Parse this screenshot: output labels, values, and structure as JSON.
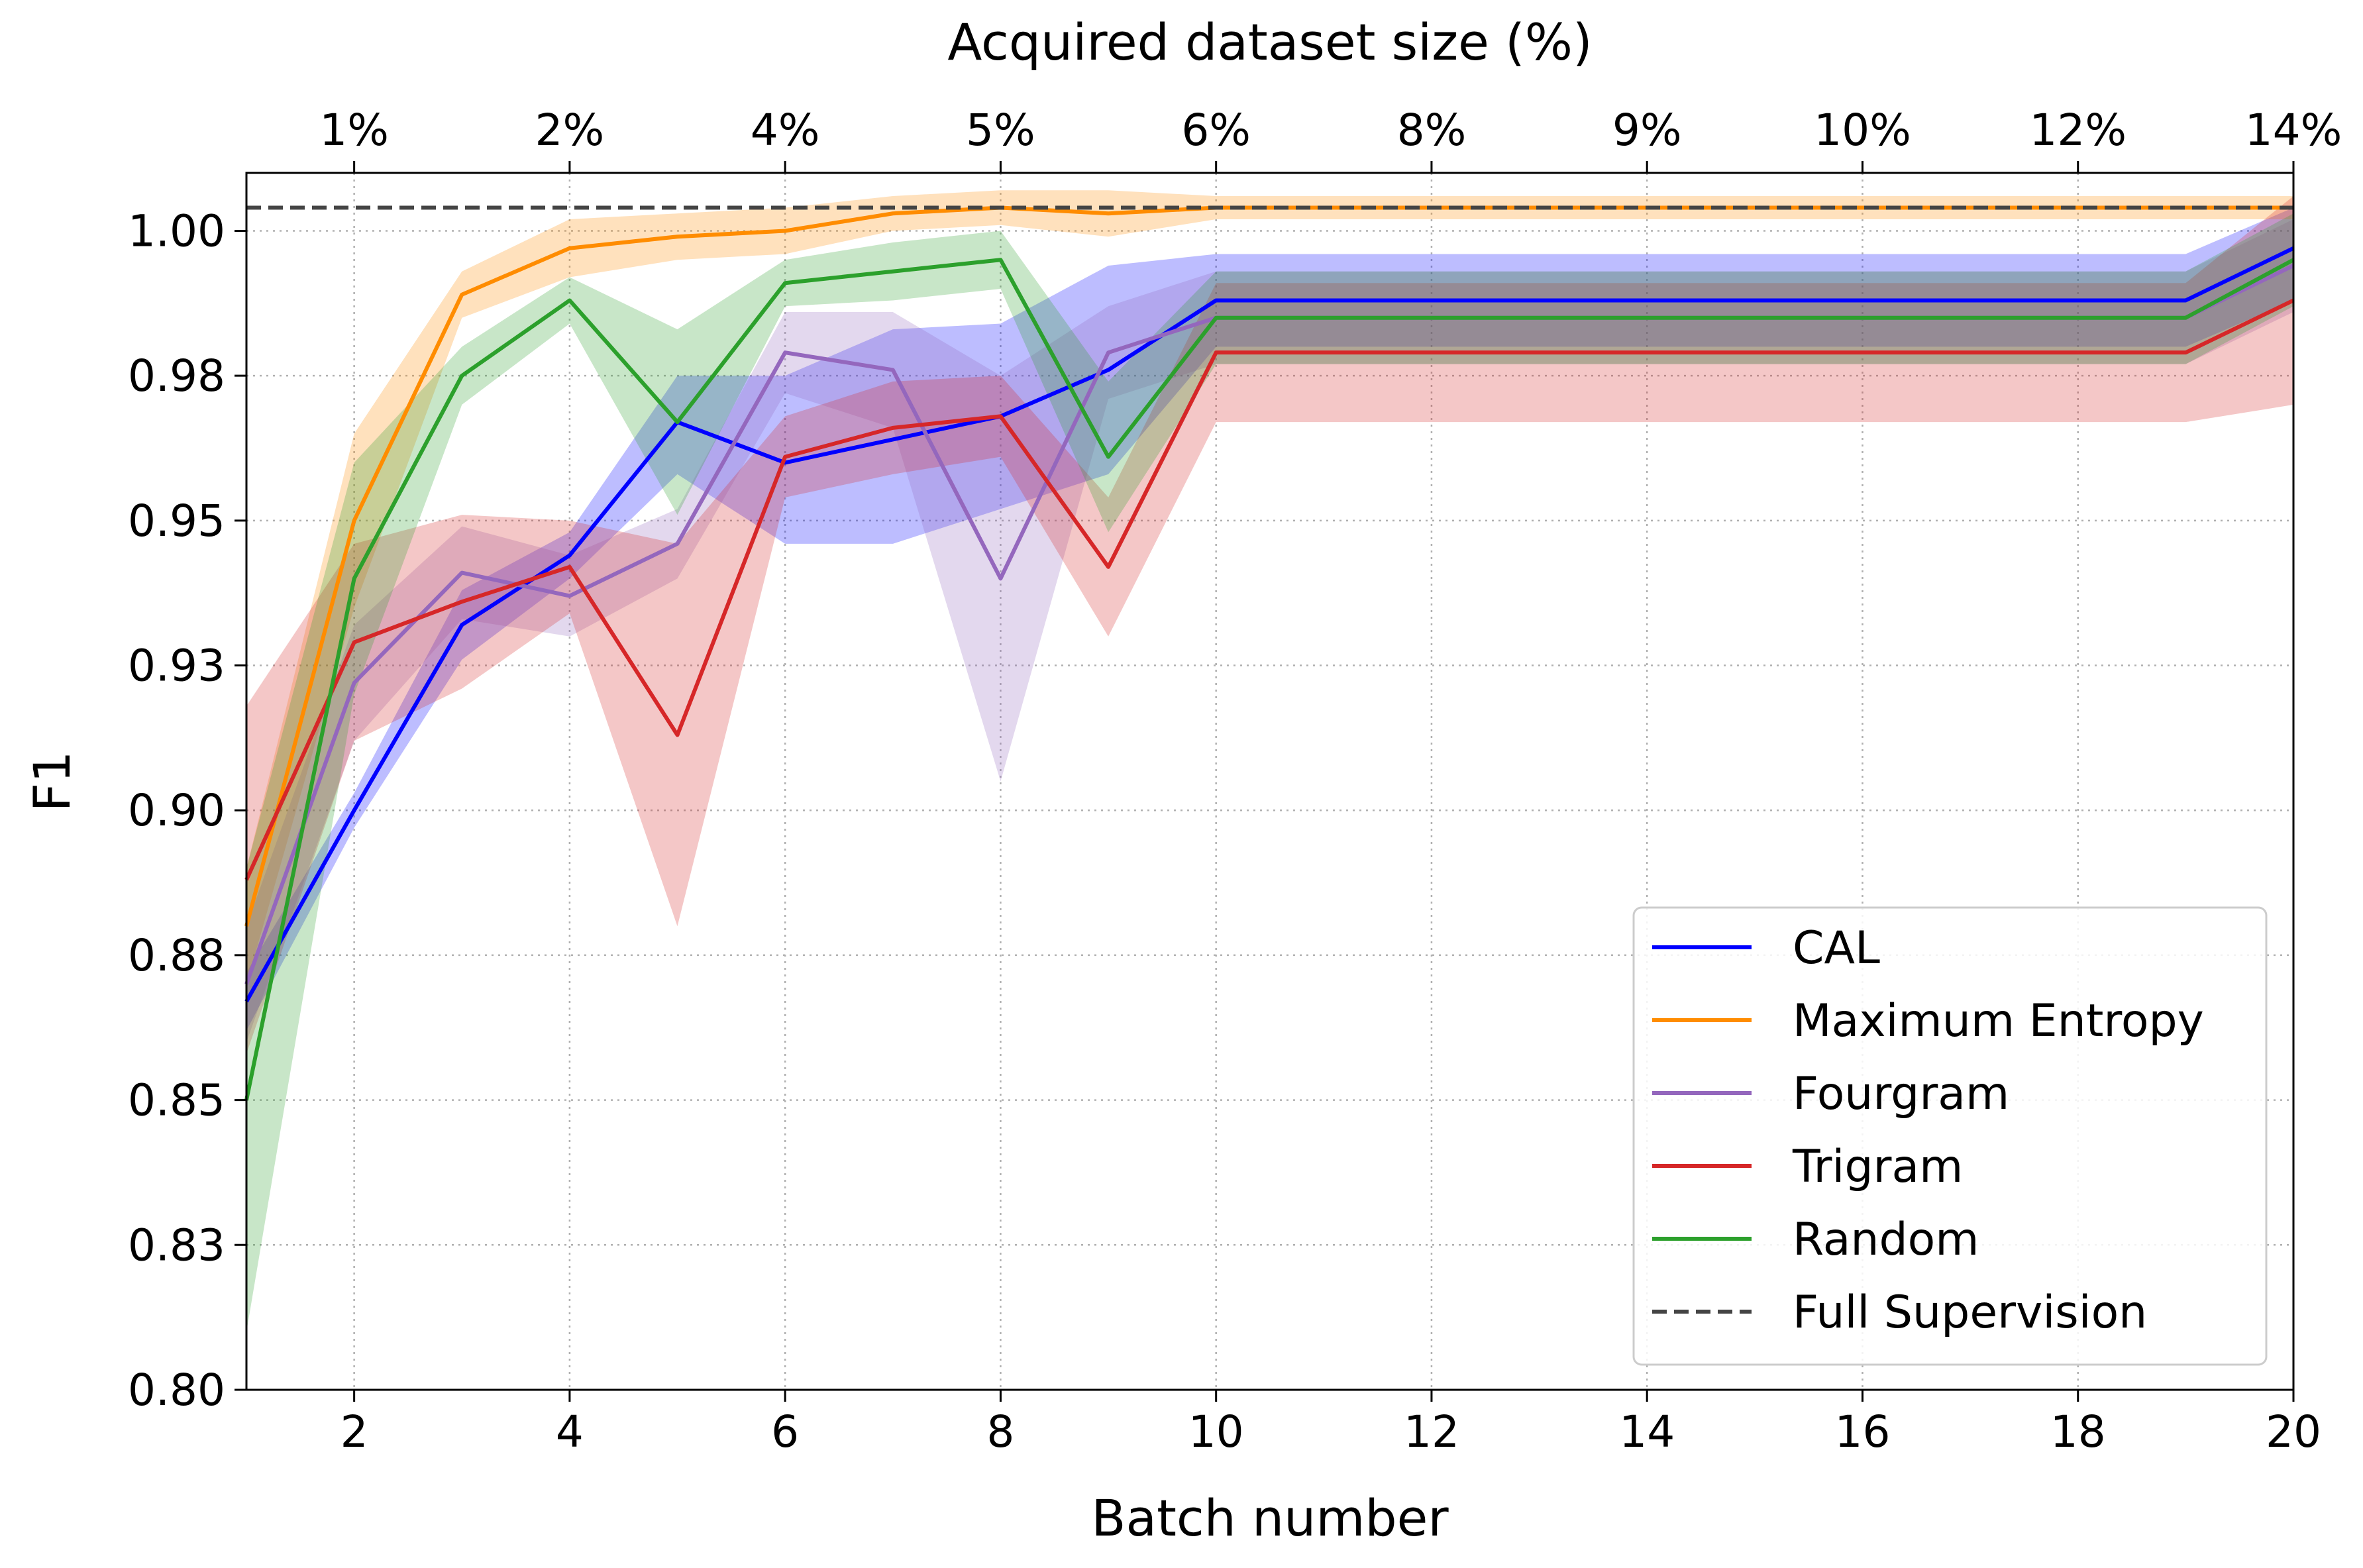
{
  "chart_data": {
    "type": "line",
    "xlabel": "Batch number",
    "ylabel": "F1",
    "top_xlabel": "Acquired dataset size (%)",
    "xlim": [
      1,
      20
    ],
    "ylim": [
      0.8,
      1.01
    ],
    "grid": true,
    "legend_position": "lower-right",
    "x_ticks": [
      2,
      4,
      6,
      8,
      10,
      12,
      14,
      16,
      18,
      20
    ],
    "y_ticks": [
      0.8,
      0.825,
      0.85,
      0.875,
      0.9,
      0.925,
      0.95,
      0.975,
      1.0
    ],
    "y_tick_labels": [
      "0.80",
      "0.83",
      "0.85",
      "0.88",
      "0.90",
      "0.93",
      "0.95",
      "0.98",
      "1.00"
    ],
    "top_ticks": [
      2,
      4,
      6,
      8,
      10,
      12,
      14,
      16,
      18,
      20
    ],
    "top_tick_labels": [
      "1%",
      "2%",
      "4%",
      "5%",
      "6%",
      "8%",
      "9%",
      "10%",
      "12%",
      "14%"
    ],
    "x": [
      1,
      2,
      3,
      4,
      5,
      6,
      7,
      8,
      9,
      10,
      11,
      12,
      13,
      14,
      15,
      16,
      17,
      18,
      19,
      20
    ],
    "series": [
      {
        "name": "CAL",
        "color": "#0000ff",
        "values": [
          0.867,
          0.9,
          0.932,
          0.944,
          0.967,
          0.96,
          0.964,
          0.968,
          0.976,
          0.988,
          0.988,
          0.988,
          0.988,
          0.988,
          0.988,
          0.988,
          0.988,
          0.988,
          0.988,
          0.997
        ],
        "lower": [
          0.862,
          0.897,
          0.926,
          0.94,
          0.958,
          0.946,
          0.946,
          0.952,
          0.958,
          0.98,
          0.98,
          0.98,
          0.98,
          0.98,
          0.98,
          0.98,
          0.98,
          0.98,
          0.98,
          0.988
        ],
        "upper": [
          0.872,
          0.903,
          0.938,
          0.948,
          0.975,
          0.975,
          0.983,
          0.984,
          0.994,
          0.996,
          0.996,
          0.996,
          0.996,
          0.996,
          0.996,
          0.996,
          0.996,
          0.996,
          0.996,
          1.004
        ]
      },
      {
        "name": "Maximum Entropy",
        "color": "#ff8c00",
        "values": [
          0.88,
          0.95,
          0.989,
          0.997,
          0.999,
          1.0,
          1.003,
          1.004,
          1.003,
          1.004,
          1.004,
          1.004,
          1.004,
          1.004,
          1.004,
          1.004,
          1.004,
          1.004,
          1.004,
          1.004
        ],
        "lower": [
          0.87,
          0.935,
          0.985,
          0.992,
          0.995,
          0.996,
          1.0,
          1.001,
          0.999,
          1.002,
          1.002,
          1.002,
          1.002,
          1.002,
          1.002,
          1.002,
          1.002,
          1.002,
          1.002,
          1.002
        ],
        "upper": [
          0.89,
          0.965,
          0.993,
          1.002,
          1.003,
          1.004,
          1.006,
          1.007,
          1.007,
          1.006,
          1.006,
          1.006,
          1.006,
          1.006,
          1.006,
          1.006,
          1.006,
          1.006,
          1.006,
          1.006
        ]
      },
      {
        "name": "Fourgram",
        "color": "#9467bd",
        "values": [
          0.87,
          0.922,
          0.941,
          0.937,
          0.946,
          0.979,
          0.976,
          0.94,
          0.979,
          0.985,
          0.985,
          0.985,
          0.985,
          0.985,
          0.985,
          0.985,
          0.985,
          0.985,
          0.985,
          0.994
        ],
        "lower": [
          0.86,
          0.912,
          0.933,
          0.93,
          0.94,
          0.972,
          0.966,
          0.905,
          0.971,
          0.977,
          0.977,
          0.977,
          0.977,
          0.977,
          0.977,
          0.977,
          0.977,
          0.977,
          0.977,
          0.986
        ],
        "upper": [
          0.88,
          0.932,
          0.949,
          0.944,
          0.952,
          0.986,
          0.986,
          0.975,
          0.987,
          0.993,
          0.993,
          0.993,
          0.993,
          0.993,
          0.993,
          0.993,
          0.993,
          0.993,
          0.993,
          1.002
        ]
      },
      {
        "name": "Trigram",
        "color": "#d62728",
        "values": [
          0.888,
          0.929,
          0.936,
          0.942,
          0.913,
          0.961,
          0.966,
          0.968,
          0.942,
          0.979,
          0.979,
          0.979,
          0.979,
          0.979,
          0.979,
          0.979,
          0.979,
          0.979,
          0.979,
          0.988
        ],
        "lower": [
          0.858,
          0.912,
          0.921,
          0.934,
          0.88,
          0.954,
          0.958,
          0.961,
          0.93,
          0.967,
          0.967,
          0.967,
          0.967,
          0.967,
          0.967,
          0.967,
          0.967,
          0.967,
          0.967,
          0.97
        ],
        "upper": [
          0.918,
          0.946,
          0.951,
          0.95,
          0.946,
          0.968,
          0.974,
          0.975,
          0.954,
          0.991,
          0.991,
          0.991,
          0.991,
          0.991,
          0.991,
          0.991,
          0.991,
          0.991,
          0.991,
          1.006
        ]
      },
      {
        "name": "Random",
        "color": "#2ca02c",
        "values": [
          0.85,
          0.94,
          0.975,
          0.988,
          0.967,
          0.991,
          0.993,
          0.995,
          0.961,
          0.985,
          0.985,
          0.985,
          0.985,
          0.985,
          0.985,
          0.985,
          0.985,
          0.985,
          0.985,
          0.995
        ],
        "lower": [
          0.81,
          0.92,
          0.97,
          0.984,
          0.951,
          0.987,
          0.988,
          0.99,
          0.948,
          0.977,
          0.977,
          0.977,
          0.977,
          0.977,
          0.977,
          0.977,
          0.977,
          0.977,
          0.977,
          0.987
        ],
        "upper": [
          0.89,
          0.96,
          0.98,
          0.992,
          0.983,
          0.995,
          0.998,
          1.0,
          0.974,
          0.993,
          0.993,
          0.993,
          0.993,
          0.993,
          0.993,
          0.993,
          0.993,
          0.993,
          0.993,
          1.003
        ]
      }
    ],
    "reference_lines": [
      {
        "name": "Full Supervision",
        "value": 1.004,
        "color": "#444444",
        "style": "dashed"
      }
    ]
  }
}
